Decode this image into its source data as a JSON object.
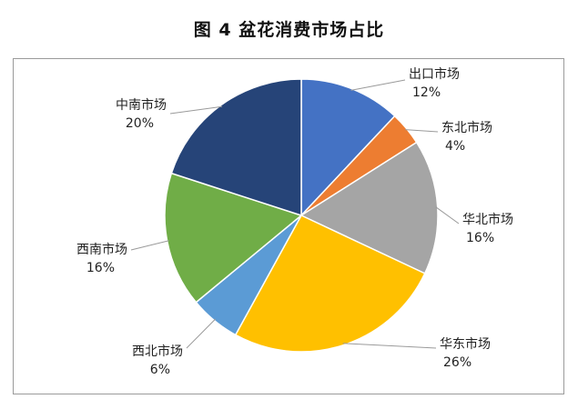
{
  "figure_title": "图 4  盆花消费市场占比",
  "chart_data": {
    "type": "pie",
    "title": "图 4  盆花消费市场占比",
    "slices": [
      {
        "name": "出口市场",
        "value": 12,
        "label": "12%",
        "color": "#4472c4"
      },
      {
        "name": "东北市场",
        "value": 4,
        "label": "4%",
        "color": "#ed7d31"
      },
      {
        "name": "华北市场",
        "value": 16,
        "label": "16%",
        "color": "#a5a5a5"
      },
      {
        "name": "华东市场",
        "value": 26,
        "label": "26%",
        "color": "#ffc000"
      },
      {
        "name": "西北市场",
        "value": 6,
        "label": "6%",
        "color": "#5b9bd5"
      },
      {
        "name": "西南市场",
        "value": 16,
        "label": "16%",
        "color": "#70ad47"
      },
      {
        "name": "中南市场",
        "value": 20,
        "label": "20%",
        "color": "#264478"
      }
    ],
    "start_angle": "12 o'clock",
    "direction": "clockwise",
    "legend": "none (data labels with leader lines)"
  }
}
